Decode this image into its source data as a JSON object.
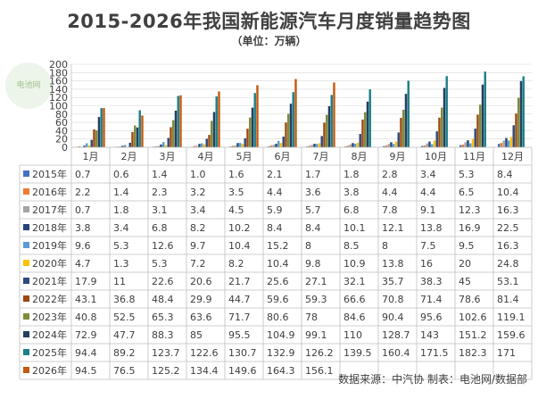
{
  "title": "2015-2026年我国新能源汽车月度销量趋势图",
  "subtitle": "（单位：万辆）",
  "watermark": "电池网",
  "source": "数据来源：中汽协   制表：电池网/数据部",
  "chart_data": {
    "type": "bar",
    "categories": [
      "1月",
      "2月",
      "3月",
      "4月",
      "5月",
      "6月",
      "7月",
      "8月",
      "9月",
      "10月",
      "11月",
      "12月"
    ],
    "ylim": [
      0,
      200
    ],
    "yticks": [
      0,
      20,
      40,
      60,
      80,
      100,
      120,
      140,
      160,
      180,
      200
    ],
    "series": [
      {
        "name": "2015年",
        "color": "#4472c4",
        "values": [
          "0.7",
          "0.6",
          "1.4",
          "1.0",
          "1.6",
          "2.1",
          "1.7",
          "1.8",
          "2.8",
          "3.4",
          "5.3",
          "8.4"
        ]
      },
      {
        "name": "2016年",
        "color": "#ed7d31",
        "values": [
          "2.2",
          "1.4",
          "2.3",
          "3.2",
          "3.5",
          "4.4",
          "3.6",
          "3.8",
          "4.4",
          "4.4",
          "6.5",
          "10.4"
        ]
      },
      {
        "name": "2017年",
        "color": "#a5a5a5",
        "values": [
          "0.7",
          "1.8",
          "3.1",
          "3.4",
          "4.5",
          "5.9",
          "5.7",
          "6.8",
          "7.8",
          "9.1",
          "12.3",
          "16.3"
        ]
      },
      {
        "name": "2018年",
        "color": "#264478",
        "values": [
          "3.8",
          "3.4",
          "6.8",
          "8.2",
          "10.2",
          "8.4",
          "8.4",
          "10.1",
          "12.1",
          "13.8",
          "16.9",
          "22.5"
        ]
      },
      {
        "name": "2019年",
        "color": "#5b9bd5",
        "values": [
          "9.6",
          "5.3",
          "12.6",
          "9.7",
          "10.4",
          "15.2",
          "8",
          "8.5",
          "8",
          "7.5",
          "9.5",
          "16.3"
        ]
      },
      {
        "name": "2020年",
        "color": "#ffc000",
        "values": [
          "4.7",
          "1.3",
          "5.3",
          "7.2",
          "8.2",
          "10.4",
          "9.8",
          "10.9",
          "13.8",
          "16",
          "20",
          "24.8"
        ]
      },
      {
        "name": "2021年",
        "color": "#2e4b7d",
        "values": [
          "17.9",
          "11",
          "22.6",
          "20.6",
          "21.7",
          "25.6",
          "27.1",
          "32.1",
          "35.7",
          "38.3",
          "45",
          "53.1"
        ]
      },
      {
        "name": "2022年",
        "color": "#9e480e",
        "values": [
          "43.1",
          "36.8",
          "48.4",
          "29.9",
          "44.7",
          "59.6",
          "59.3",
          "66.6",
          "70.8",
          "71.4",
          "78.6",
          "81.4"
        ]
      },
      {
        "name": "2023年",
        "color": "#7f8c3a",
        "values": [
          "40.8",
          "52.5",
          "65.3",
          "63.6",
          "71.7",
          "80.6",
          "78",
          "84.6",
          "90.4",
          "95.6",
          "102.6",
          "119.1"
        ]
      },
      {
        "name": "2024年",
        "color": "#243f60",
        "values": [
          "72.9",
          "47.7",
          "88.3",
          "85",
          "95.5",
          "104.9",
          "99.1",
          "110",
          "128.7",
          "143",
          "151.2",
          "159.6"
        ]
      },
      {
        "name": "2025年",
        "color": "#1e7f88",
        "values": [
          "94.4",
          "89.2",
          "123.7",
          "122.6",
          "130.7",
          "132.9",
          "126.2",
          "139.5",
          "160.4",
          "171.5",
          "182.3",
          "171"
        ]
      },
      {
        "name": "2026年",
        "color": "#c55a11",
        "values": [
          "94.5",
          "76.5",
          "125.2",
          "134.4",
          "149.6",
          "164.3",
          "156.1",
          "",
          "",
          "",
          "",
          ""
        ]
      }
    ]
  }
}
